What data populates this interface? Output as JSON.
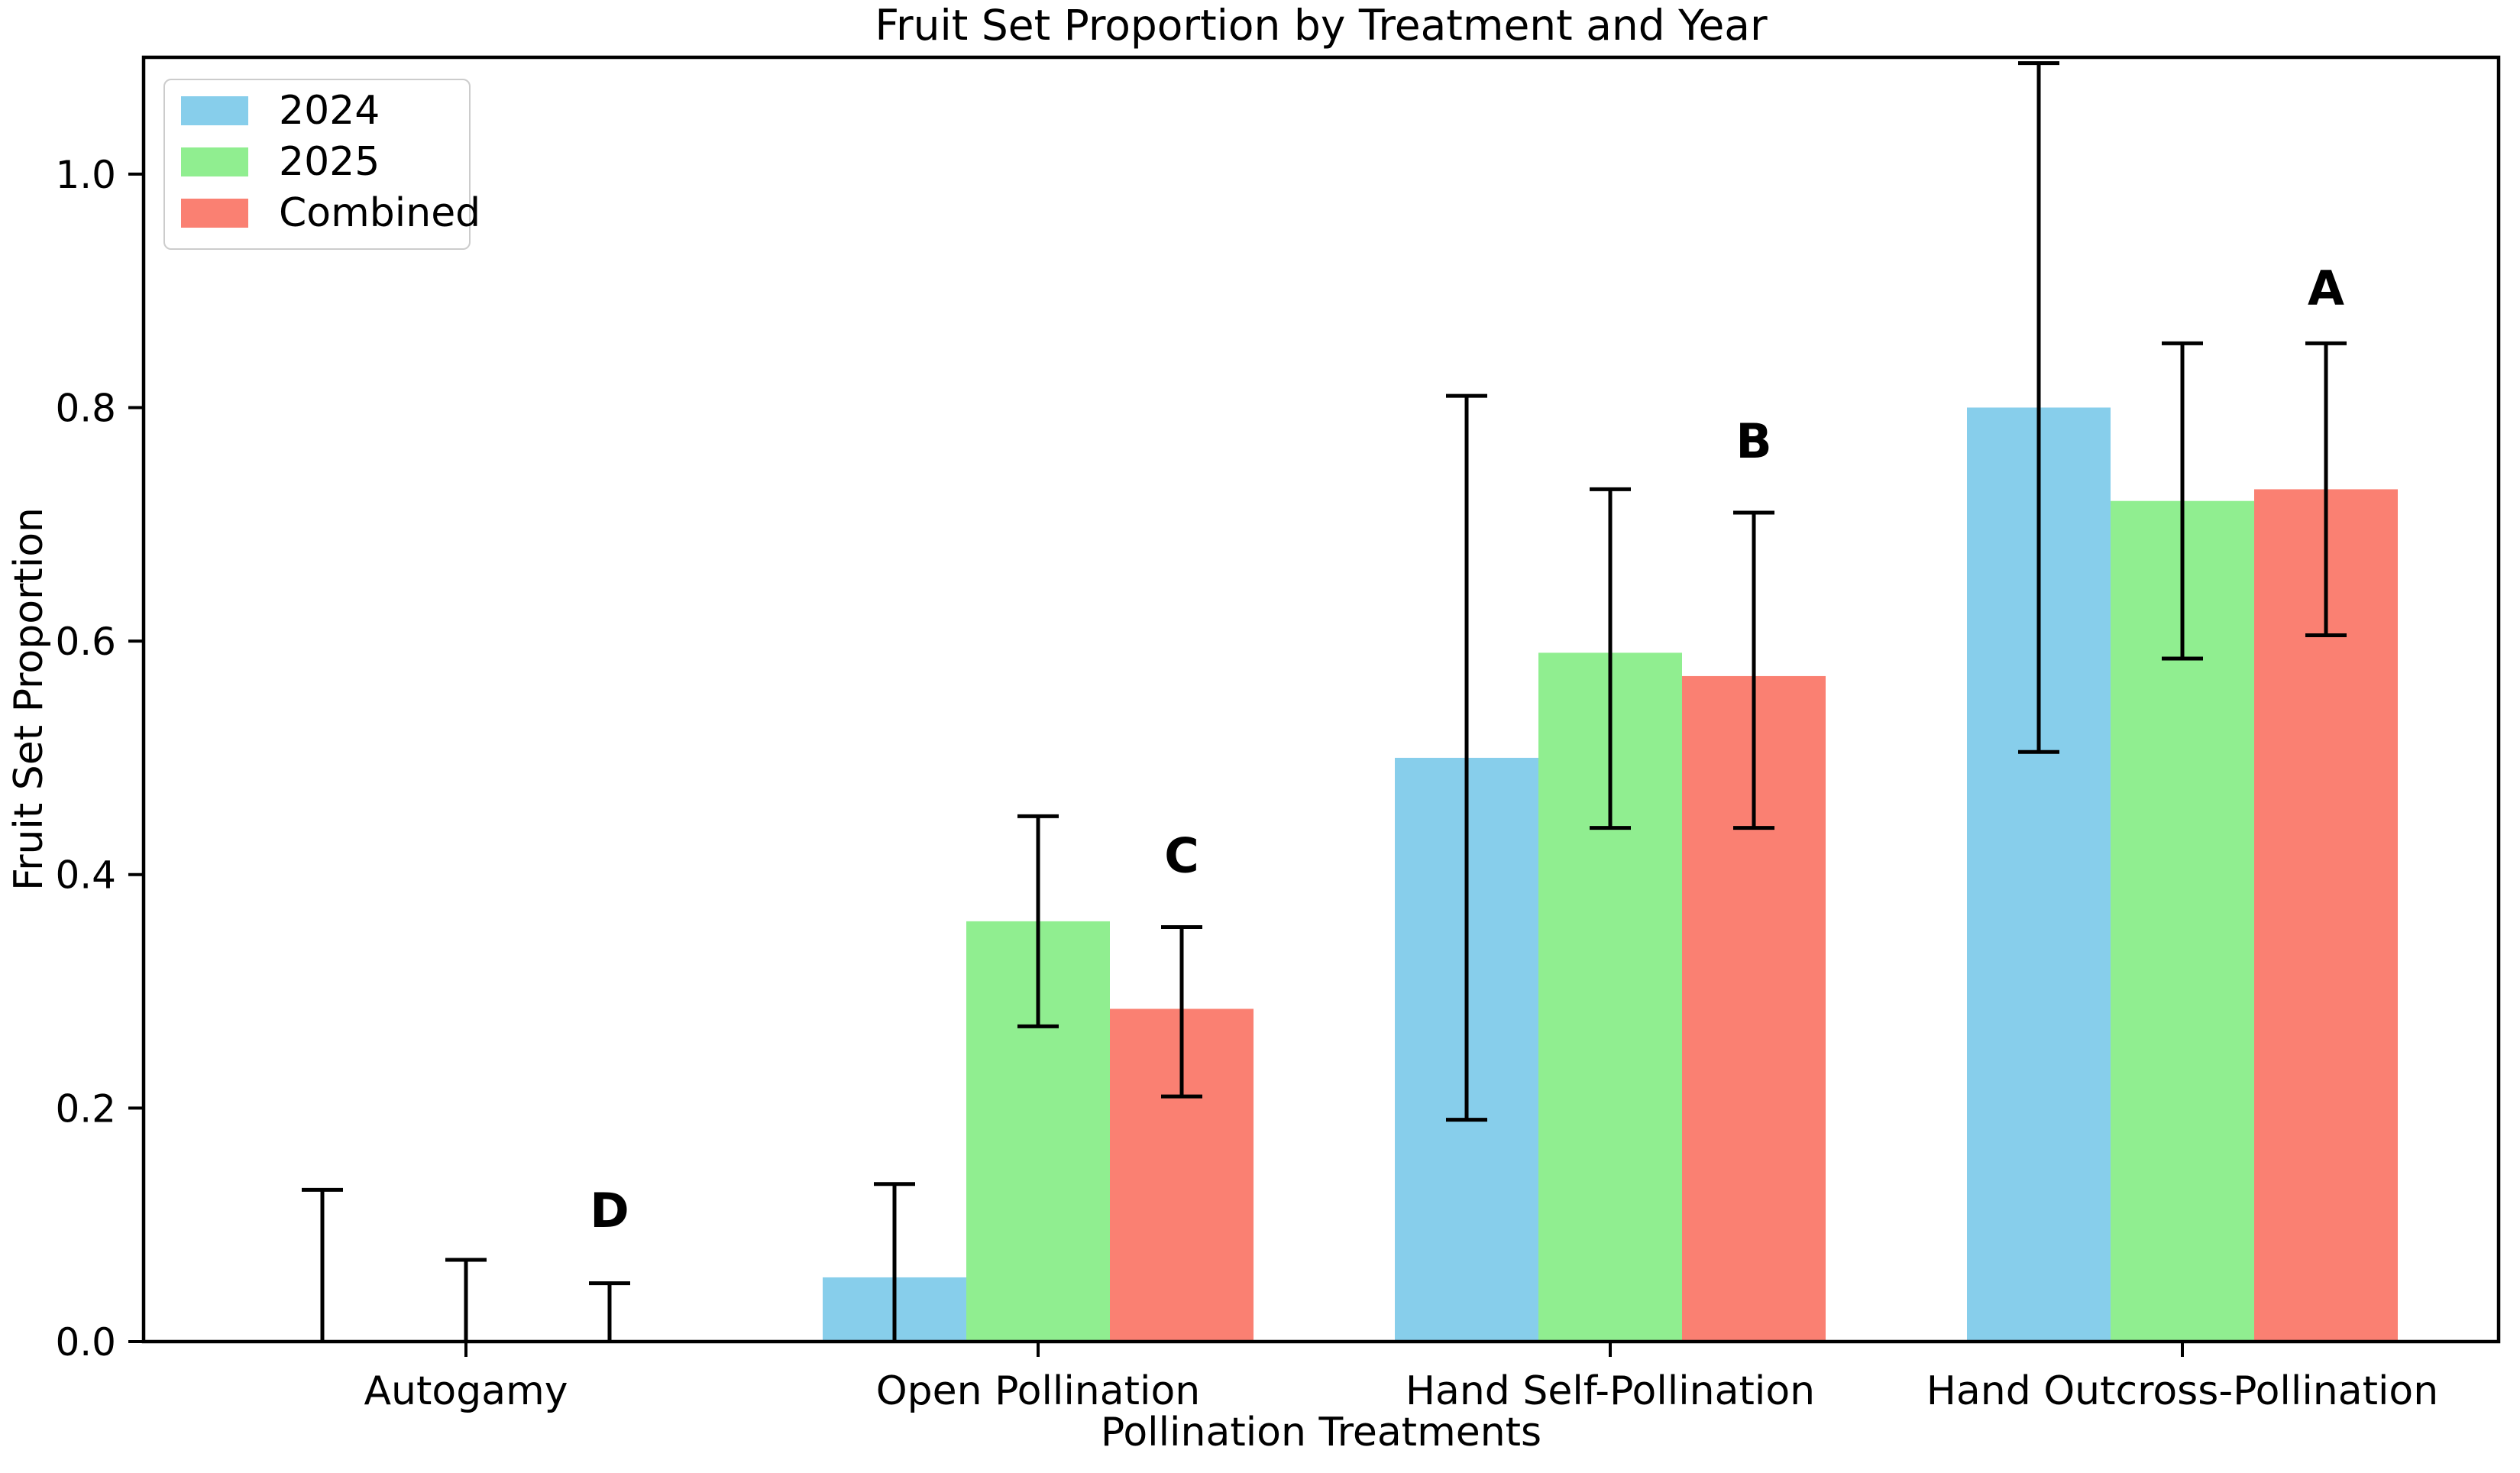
{
  "figure": {
    "background_color": "#ffffff",
    "axis_color": "#000000"
  },
  "chart_data": {
    "type": "bar",
    "title": "Fruit Set Proportion by Treatment and Year",
    "xlabel": "Pollination Treatments",
    "ylabel": "Fruit Set Proportion",
    "ylim": [
      0,
      1.1
    ],
    "ytick_labels": [
      "0.0",
      "0.2",
      "0.4",
      "0.6",
      "0.8",
      "1.0"
    ],
    "ytick_values": [
      0.0,
      0.2,
      0.4,
      0.6,
      0.8,
      1.0
    ],
    "grid": false,
    "categories": [
      "Autogamy",
      "Open Pollination",
      "Hand Self-Pollination",
      "Hand Outcross-Pollination"
    ],
    "series": [
      {
        "name": "2024",
        "color": "#87CEEB",
        "values": [
          0.0,
          0.055,
          0.5,
          0.8
        ],
        "err_low": [
          0.0,
          0.0,
          0.19,
          0.505
        ],
        "err_high": [
          0.13,
          0.135,
          0.81,
          1.095
        ]
      },
      {
        "name": "2025",
        "color": "#90EE90",
        "values": [
          0.0,
          0.36,
          0.59,
          0.72
        ],
        "err_low": [
          0.0,
          0.27,
          0.44,
          0.585
        ],
        "err_high": [
          0.07,
          0.45,
          0.73,
          0.855
        ]
      },
      {
        "name": "Combined",
        "color": "#FA8072",
        "values": [
          0.0,
          0.285,
          0.57,
          0.73
        ],
        "err_low": [
          0.0,
          0.21,
          0.44,
          0.605
        ],
        "err_high": [
          0.05,
          0.355,
          0.71,
          0.855
        ]
      }
    ],
    "error_bar_color": "#000000",
    "sig_letters": [
      {
        "label": "D",
        "category_index": 0,
        "y": 0.098
      },
      {
        "label": "C",
        "category_index": 1,
        "y": 0.402
      },
      {
        "label": "B",
        "category_index": 2,
        "y": 0.757
      },
      {
        "label": "A",
        "category_index": 3,
        "y": 0.888
      }
    ],
    "legend": {
      "position": "upper-left",
      "entries": [
        "2024",
        "2025",
        "Combined"
      ]
    }
  }
}
